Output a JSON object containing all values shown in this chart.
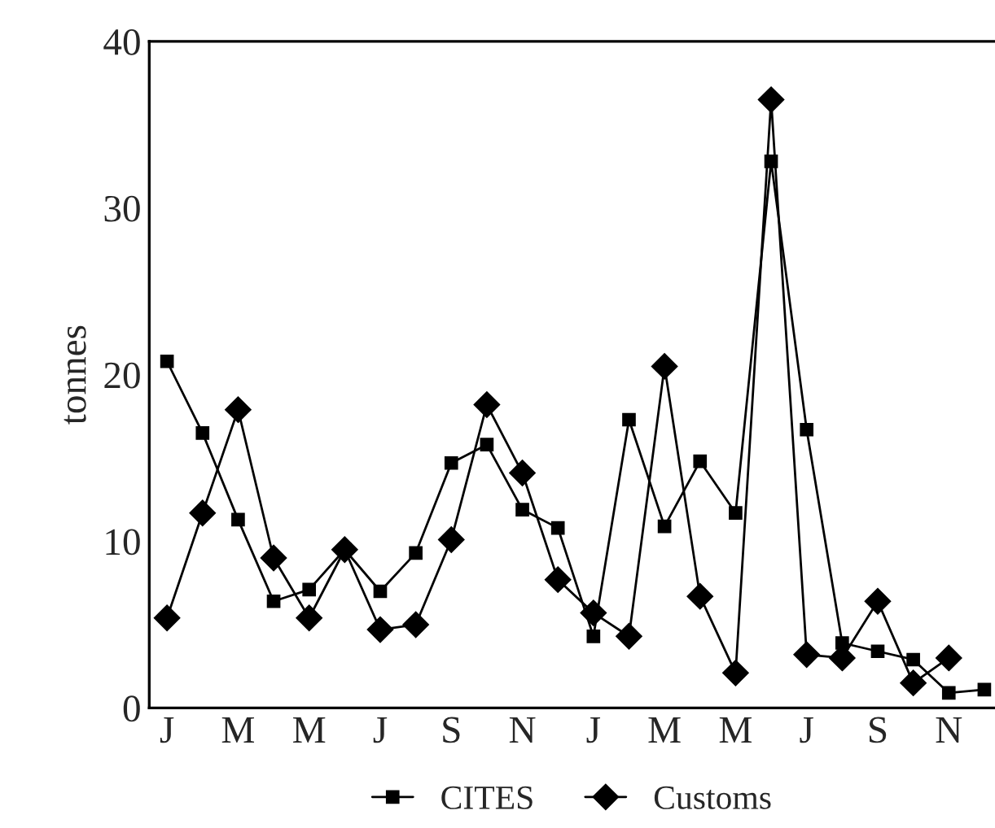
{
  "chart_data": {
    "type": "line",
    "ylabel": "tonnes",
    "categories": [
      "J",
      null,
      "M",
      null,
      "M",
      null,
      "J",
      null,
      "S",
      null,
      "N",
      null,
      "J",
      null,
      "M",
      null,
      "M",
      null,
      "J",
      null,
      "S",
      null,
      "N",
      null
    ],
    "series": [
      {
        "name": "CITES",
        "color": "#000000",
        "marker": "square",
        "values": [
          20.8,
          16.5,
          11.3,
          6.4,
          7.1,
          9.5,
          7.0,
          9.3,
          14.7,
          15.8,
          11.9,
          10.8,
          4.3,
          17.3,
          10.9,
          14.8,
          11.7,
          32.8,
          16.7,
          3.9,
          3.4,
          2.9,
          0.9,
          1.1
        ]
      },
      {
        "name": "Customs",
        "color": "#000000",
        "marker": "diamond",
        "values": [
          5.4,
          11.7,
          17.9,
          9.0,
          5.4,
          9.5,
          4.7,
          5.0,
          10.1,
          18.2,
          14.1,
          7.7,
          5.7,
          4.3,
          20.5,
          6.7,
          2.1,
          36.5,
          3.2,
          3.0,
          6.4,
          1.5,
          3.0,
          null
        ]
      }
    ],
    "ylim": [
      0,
      40
    ],
    "yticks": [
      0,
      10,
      20,
      30,
      40
    ],
    "grid": false,
    "legend": "bottom",
    "line_style": "solid"
  }
}
